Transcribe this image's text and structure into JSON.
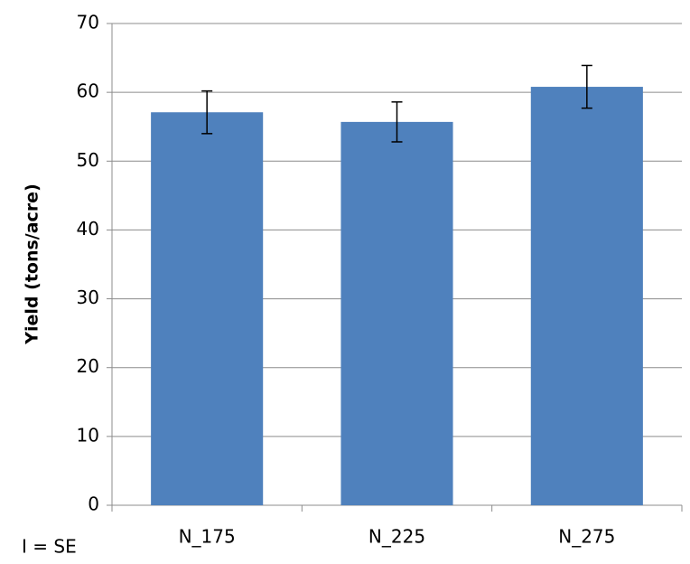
{
  "chart_data": {
    "type": "bar",
    "y_label": "Yield (tons/acre)",
    "annotation": "I = SE",
    "categories": [
      "N_175",
      "N_225",
      "N_275"
    ],
    "values": [
      57.1,
      55.7,
      60.8
    ],
    "errors": [
      3.1,
      2.9,
      3.1
    ],
    "color": "#4f81bd",
    "ylim": [
      0,
      70
    ],
    "yticks": [
      0,
      10,
      20,
      30,
      40,
      50,
      60,
      70
    ],
    "grid": true
  }
}
